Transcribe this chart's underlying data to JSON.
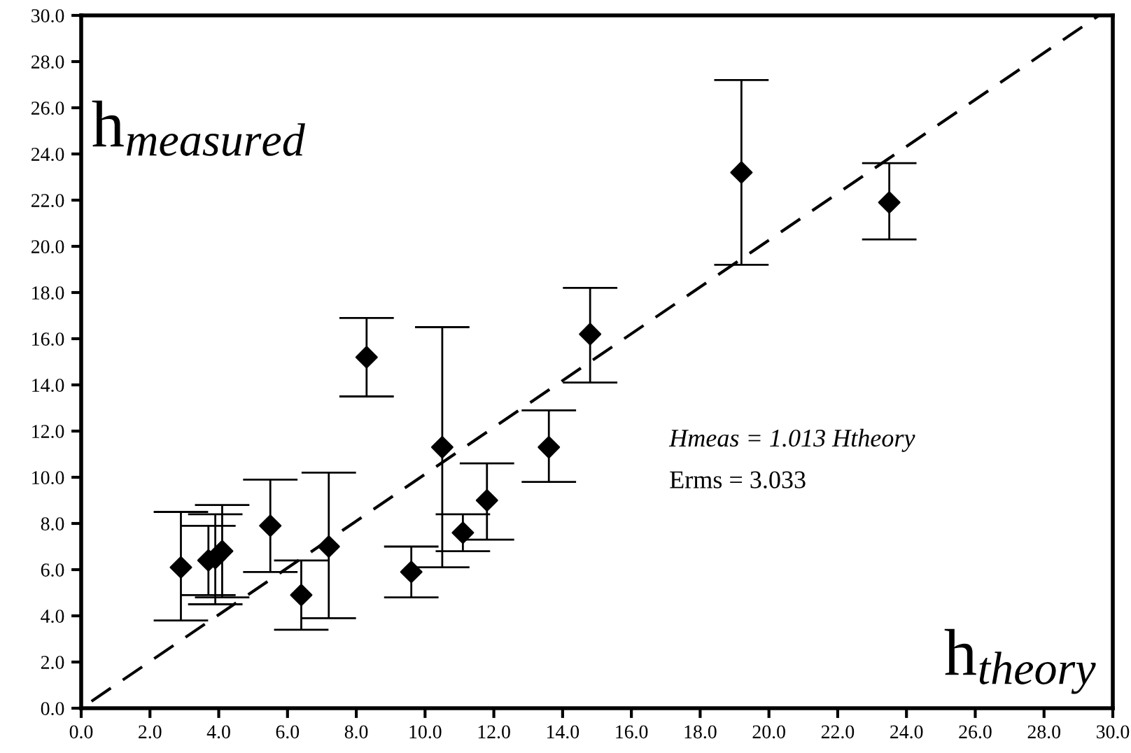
{
  "chart_data": {
    "type": "scatter",
    "xlabel": "h$_{theory}$",
    "ylabel": "h$_{measured}$",
    "x": [
      2.9,
      3.7,
      3.9,
      4.1,
      5.5,
      6.4,
      7.2,
      8.3,
      9.6,
      10.5,
      11.1,
      11.8,
      13.6,
      14.8,
      19.2,
      23.5
    ],
    "series": [
      {
        "color": "#000000",
        "values": [
          6.1,
          6.4,
          6.5,
          6.8,
          7.9,
          4.9,
          7.0,
          15.2,
          5.9,
          11.3,
          7.6,
          9.0,
          11.3,
          16.2,
          23.2,
          21.9
        ],
        "errors": [
          [
            3.8,
            8.5
          ],
          [
            4.9,
            7.9
          ],
          [
            4.5,
            8.4
          ],
          [
            4.8,
            8.8
          ],
          [
            5.9,
            9.9
          ],
          [
            3.4,
            6.4
          ],
          [
            3.9,
            10.2
          ],
          [
            13.5,
            16.9
          ],
          [
            4.8,
            7.0
          ],
          [
            6.1,
            16.5
          ],
          [
            6.8,
            8.4
          ],
          [
            7.3,
            10.6
          ],
          [
            9.8,
            12.9
          ],
          [
            14.1,
            18.2
          ],
          [
            19.2,
            27.2
          ],
          [
            20.3,
            23.6
          ]
        ]
      },
      {
        "type": "line",
        "color": "#000000",
        "line_style": "dashed",
        "marker": "none",
        "x": [
          0.3,
          29.6
        ],
        "values": [
          0.3,
          30.0
        ]
      }
    ],
    "marker": "diamond",
    "grid": false,
    "legend": false,
    "annotations": [
      "Hmeas = 1.013 Htheory",
      "Erms = 3.033"
    ],
    "xlim": [
      0,
      30
    ],
    "ylim": [
      0,
      30
    ],
    "xticks": [
      {
        "value": 0,
        "label": "0.0"
      },
      {
        "value": 2,
        "label": "2.0"
      },
      {
        "value": 4,
        "label": "4.0"
      },
      {
        "value": 6,
        "label": "6.0"
      },
      {
        "value": 8,
        "label": "8.0"
      },
      {
        "value": 10,
        "label": "10.0"
      },
      {
        "value": 12,
        "label": "12.0"
      },
      {
        "value": 14,
        "label": "14.0"
      },
      {
        "value": 16,
        "label": "16.0"
      },
      {
        "value": 18,
        "label": "18.0"
      },
      {
        "value": 20,
        "label": "20.0"
      },
      {
        "value": 22,
        "label": "22.0"
      },
      {
        "value": 24,
        "label": "24.0"
      },
      {
        "value": 26,
        "label": "26.0"
      },
      {
        "value": 28,
        "label": "28.0"
      },
      {
        "value": 30,
        "label": "30.0"
      }
    ],
    "yticks": [
      {
        "value": 0,
        "label": "0.0"
      },
      {
        "value": 2,
        "label": "2.0"
      },
      {
        "value": 4,
        "label": "4.0"
      },
      {
        "value": 6,
        "label": "6.0"
      },
      {
        "value": 8,
        "label": "8.0"
      },
      {
        "value": 10,
        "label": "10.0"
      },
      {
        "value": 12,
        "label": "12.0"
      },
      {
        "value": 14,
        "label": "14.0"
      },
      {
        "value": 16,
        "label": "16.0"
      },
      {
        "value": 18,
        "label": "18.0"
      },
      {
        "value": 20,
        "label": "20.0"
      },
      {
        "value": 22,
        "label": "22.0"
      },
      {
        "value": 24,
        "label": "24.0"
      },
      {
        "value": 26,
        "label": "26.0"
      },
      {
        "value": 28,
        "label": "28.0"
      },
      {
        "value": 30,
        "label": "30.0"
      }
    ]
  }
}
